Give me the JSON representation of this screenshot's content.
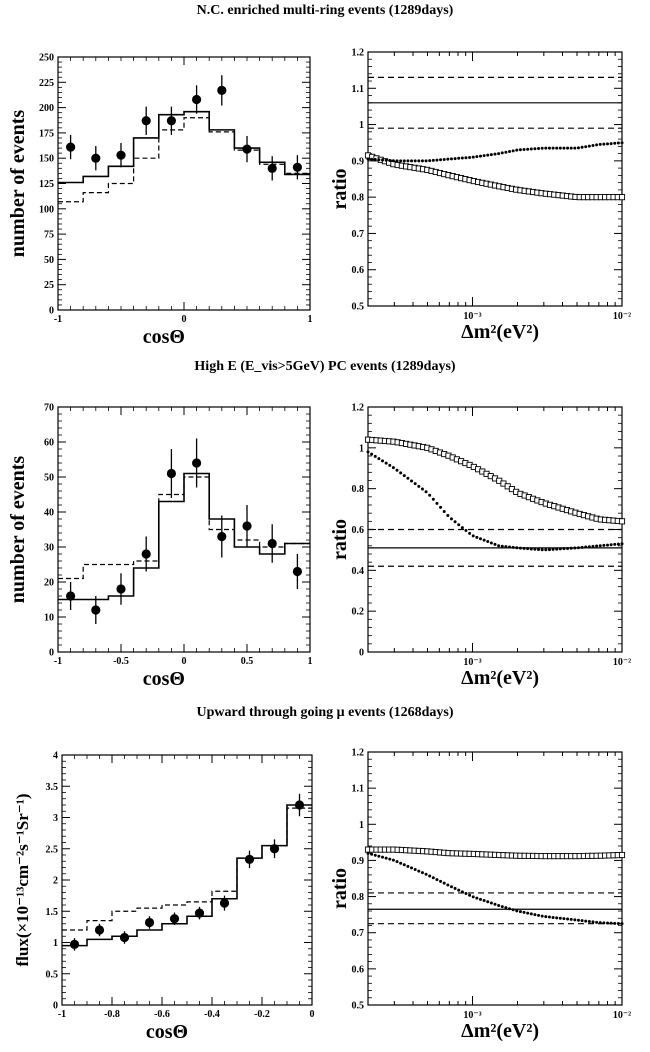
{
  "sections": [
    {
      "title": "N.C. enriched multi-ring events (1289days)",
      "left": {
        "xlabel": "cosΘ",
        "ylabel": "number of events",
        "xlim": [
          -1,
          1
        ],
        "ylim": [
          0,
          250
        ],
        "xticks": [
          "-1",
          "0",
          "1"
        ],
        "xtick_values": [
          -1,
          0,
          1
        ],
        "yticks": [
          "0",
          "25",
          "50",
          "75",
          "100",
          "125",
          "150",
          "175",
          "200",
          "225",
          "250"
        ],
        "ytick_values": [
          0,
          25,
          50,
          75,
          100,
          125,
          150,
          175,
          200,
          225,
          250
        ]
      },
      "right": {
        "ylabel": "ratio",
        "xlim": [
          0.0002,
          0.01
        ],
        "ylim": [
          0.5,
          1.2
        ],
        "yticks": [
          "0.5",
          "0.6",
          "0.7",
          "0.8",
          "0.9",
          "1",
          "1.1",
          "1.2"
        ],
        "ytick_values": [
          0.5,
          0.6,
          0.7,
          0.8,
          0.9,
          1.0,
          1.1,
          1.2
        ]
      }
    },
    {
      "title": "High E (E_vis>5GeV) PC events (1289days)",
      "left": {
        "xlabel": "cosΘ",
        "ylabel": "number of events",
        "xlim": [
          -1,
          1
        ],
        "ylim": [
          0,
          70
        ],
        "xticks": [
          "-1",
          "-0.5",
          "0",
          "0.5",
          "1"
        ],
        "xtick_values": [
          -1,
          -0.5,
          0,
          0.5,
          1
        ],
        "yticks": [
          "0",
          "10",
          "20",
          "30",
          "40",
          "50",
          "60",
          "70"
        ],
        "ytick_values": [
          0,
          10,
          20,
          30,
          40,
          50,
          60,
          70
        ]
      },
      "right": {
        "ylabel": "ratio",
        "xlim": [
          0.0002,
          0.01
        ],
        "ylim": [
          0,
          1.2
        ],
        "yticks": [
          "0",
          "0.2",
          "0.4",
          "0.6",
          "0.8",
          "1",
          "1.2"
        ],
        "ytick_values": [
          0,
          0.2,
          0.4,
          0.6,
          0.8,
          1.0,
          1.2
        ]
      }
    },
    {
      "title": "Upward through going μ events (1268days)",
      "left": {
        "xlabel": "cosΘ",
        "ylabel": "flux(×10⁻¹³cm⁻²s⁻¹Sr⁻¹)",
        "xlim": [
          -1,
          0
        ],
        "ylim": [
          0,
          4
        ],
        "xticks": [
          "-1",
          "-0.8",
          "-0.6",
          "-0.4",
          "-0.2",
          "0"
        ],
        "xtick_values": [
          -1,
          -0.8,
          -0.6,
          -0.4,
          -0.2,
          0
        ],
        "yticks": [
          "0",
          "0.5",
          "1",
          "1.5",
          "2",
          "2.5",
          "3",
          "3.5",
          "4"
        ],
        "ytick_values": [
          0,
          0.5,
          1,
          1.5,
          2,
          2.5,
          3,
          3.5,
          4
        ]
      },
      "right": {
        "ylabel": "ratio",
        "xlim": [
          0.0002,
          0.01
        ],
        "ylim": [
          0.5,
          1.2
        ],
        "yticks": [
          "0.5",
          "0.6",
          "0.7",
          "0.8",
          "0.9",
          "1",
          "1.1",
          "1.2"
        ],
        "ytick_values": [
          0.5,
          0.6,
          0.7,
          0.8,
          0.9,
          1.0,
          1.1,
          1.2
        ]
      }
    }
  ],
  "right_xlabel": "Δm²(eV²)",
  "right_xtick_labels": [
    "10⁻³",
    "10⁻²"
  ],
  "right_xtick_values": [
    0.001,
    0.01
  ],
  "chart_data": [
    {
      "type": "scatter",
      "panel": "N.C. enriched multi-ring events (1289days) - zenith distribution",
      "x": [
        -0.9,
        -0.7,
        -0.5,
        -0.3,
        -0.1,
        0.1,
        0.3,
        0.5,
        0.7,
        0.9
      ],
      "data_points": [
        161,
        150,
        153,
        187,
        187,
        208,
        217,
        159,
        140,
        141
      ],
      "data_errors": [
        12,
        12,
        12,
        14,
        14,
        14,
        15,
        13,
        12,
        12
      ],
      "solid_histogram": [
        126,
        132,
        142,
        170,
        193,
        196,
        178,
        160,
        146,
        134
      ],
      "dashed_histogram": [
        107,
        116,
        125,
        150,
        178,
        190,
        176,
        158,
        144,
        135
      ],
      "xlim": [
        -1,
        1
      ],
      "ylim": [
        0,
        250
      ],
      "xlabel": "cosΘ",
      "ylabel": "number of events"
    },
    {
      "type": "line",
      "panel": "N.C. enriched multi-ring events (1289days) - ratio vs Δm²",
      "log_x": true,
      "x": [
        0.0002,
        0.0003,
        0.0005,
        0.0007,
        0.001,
        0.0015,
        0.002,
        0.003,
        0.005,
        0.007,
        0.01
      ],
      "series": [
        {
          "name": "",
          "style": "open-squares",
          "values": [
            0.915,
            0.89,
            0.875,
            0.86,
            0.845,
            0.83,
            0.82,
            0.81,
            0.8,
            0.8,
            0.8
          ]
        },
        {
          "name": "",
          "style": "dotted",
          "values": [
            0.905,
            0.9,
            0.9,
            0.905,
            0.91,
            0.92,
            0.93,
            0.935,
            0.935,
            0.945,
            0.95
          ]
        }
      ],
      "hlines": [
        {
          "style": "solid",
          "value": 1.06
        },
        {
          "style": "dashed",
          "value": 1.13
        },
        {
          "style": "dashed",
          "value": 0.99
        }
      ],
      "xlim": [
        0.0002,
        0.01
      ],
      "ylim": [
        0.5,
        1.2
      ],
      "xlabel": "Δm²(eV²)",
      "ylabel": "ratio"
    },
    {
      "type": "scatter",
      "panel": "High E (E_vis>5GeV) PC events (1289days) - zenith distribution",
      "x": [
        -0.9,
        -0.7,
        -0.5,
        -0.3,
        -0.1,
        0.1,
        0.3,
        0.5,
        0.7,
        0.9
      ],
      "data_points": [
        16,
        12,
        18,
        28,
        51,
        54,
        33,
        36,
        31,
        23
      ],
      "data_errors": [
        4,
        4,
        4.5,
        5,
        7,
        7,
        6,
        6,
        5.5,
        5
      ],
      "solid_histogram": [
        15,
        15,
        16,
        24,
        43,
        51,
        38,
        30,
        28,
        31
      ],
      "dashed_histogram": [
        21,
        25,
        25,
        26,
        45,
        50,
        35,
        32,
        30,
        31
      ],
      "xlim": [
        -1,
        1
      ],
      "ylim": [
        0,
        70
      ],
      "xlabel": "cosΘ",
      "ylabel": "number of events"
    },
    {
      "type": "line",
      "panel": "High E (E_vis>5GeV) PC events (1289days) - ratio vs Δm²",
      "log_x": true,
      "x": [
        0.0002,
        0.0003,
        0.0005,
        0.0007,
        0.001,
        0.0015,
        0.002,
        0.003,
        0.005,
        0.007,
        0.01
      ],
      "series": [
        {
          "name": "",
          "style": "open-squares",
          "values": [
            1.04,
            1.03,
            1.0,
            0.96,
            0.91,
            0.84,
            0.78,
            0.73,
            0.68,
            0.65,
            0.64
          ]
        },
        {
          "name": "",
          "style": "dotted",
          "values": [
            0.98,
            0.9,
            0.78,
            0.66,
            0.57,
            0.52,
            0.51,
            0.5,
            0.51,
            0.52,
            0.53
          ]
        }
      ],
      "hlines": [
        {
          "style": "solid",
          "value": 0.51
        },
        {
          "style": "dashed",
          "value": 0.6
        },
        {
          "style": "dashed",
          "value": 0.42
        }
      ],
      "xlim": [
        0.0002,
        0.01
      ],
      "ylim": [
        0,
        1.2
      ],
      "xlabel": "Δm²(eV²)",
      "ylabel": "ratio"
    },
    {
      "type": "scatter",
      "panel": "Upward through going μ events (1268days) - zenith distribution",
      "x": [
        -0.95,
        -0.85,
        -0.75,
        -0.65,
        -0.55,
        -0.45,
        -0.35,
        -0.25,
        -0.15,
        -0.05
      ],
      "data_points": [
        0.97,
        1.2,
        1.08,
        1.32,
        1.38,
        1.47,
        1.63,
        2.33,
        2.5,
        3.2
      ],
      "data_errors": [
        0.1,
        0.1,
        0.1,
        0.1,
        0.1,
        0.1,
        0.12,
        0.14,
        0.15,
        0.18
      ],
      "solid_histogram": [
        0.95,
        1.05,
        1.1,
        1.2,
        1.3,
        1.42,
        1.7,
        2.35,
        2.55,
        3.2
      ],
      "dashed_histogram": [
        1.2,
        1.35,
        1.5,
        1.55,
        1.6,
        1.65,
        1.82,
        2.35,
        2.55,
        3.15
      ],
      "xlim": [
        -1,
        0
      ],
      "ylim": [
        0,
        4
      ],
      "xlabel": "cosΘ",
      "ylabel": "flux(×10⁻¹³cm⁻²s⁻¹Sr⁻¹)"
    },
    {
      "type": "line",
      "panel": "Upward through going μ events (1268days) - ratio vs Δm²",
      "log_x": true,
      "x": [
        0.0002,
        0.0003,
        0.0005,
        0.0007,
        0.001,
        0.0015,
        0.002,
        0.003,
        0.005,
        0.007,
        0.01
      ],
      "series": [
        {
          "name": "",
          "style": "open-squares",
          "values": [
            0.93,
            0.93,
            0.925,
            0.92,
            0.918,
            0.915,
            0.913,
            0.912,
            0.912,
            0.913,
            0.915
          ]
        },
        {
          "name": "",
          "style": "dotted",
          "values": [
            0.92,
            0.9,
            0.86,
            0.83,
            0.8,
            0.775,
            0.76,
            0.745,
            0.735,
            0.728,
            0.725
          ]
        }
      ],
      "hlines": [
        {
          "style": "solid",
          "value": 0.765
        },
        {
          "style": "dashed",
          "value": 0.81
        },
        {
          "style": "dashed",
          "value": 0.725
        }
      ],
      "xlim": [
        0.0002,
        0.01
      ],
      "ylim": [
        0.5,
        1.2
      ],
      "xlabel": "Δm²(eV²)",
      "ylabel": "ratio"
    }
  ]
}
